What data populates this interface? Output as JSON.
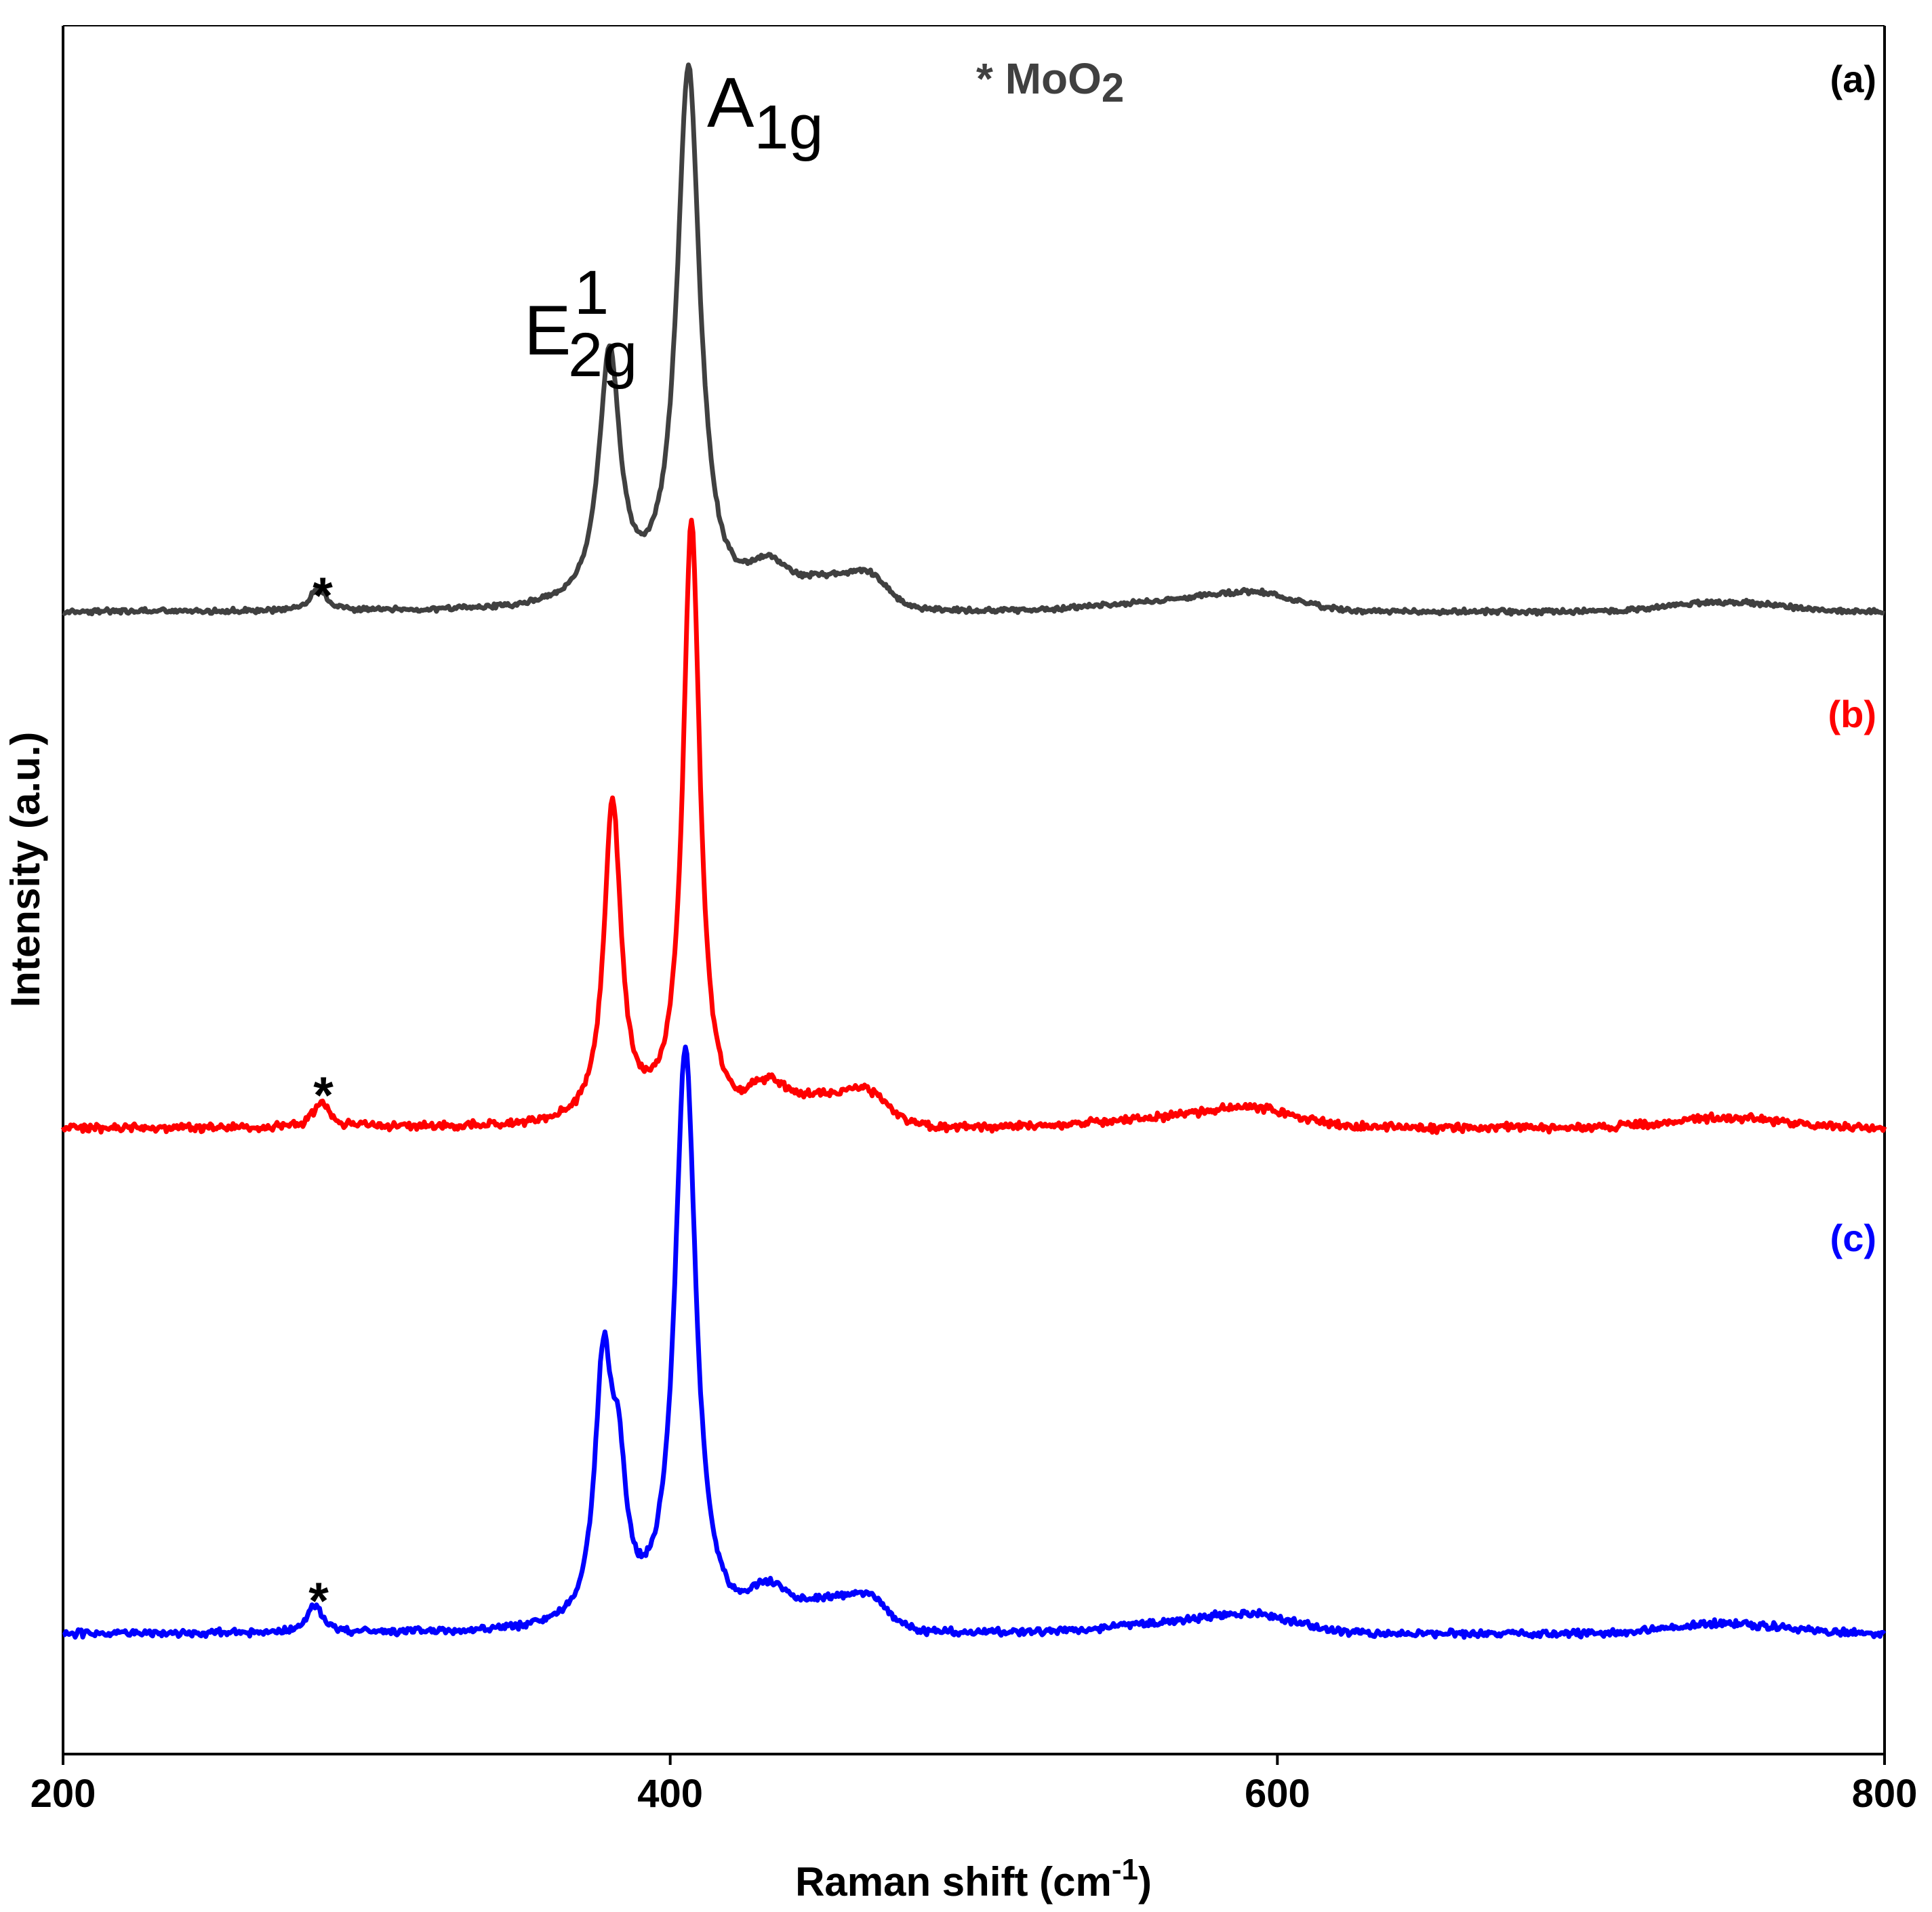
{
  "chart_data": {
    "type": "line",
    "title": "",
    "xlabel": "Raman shift (cm",
    "xlabel_sup": "-1",
    "xlabel_close": ")",
    "ylabel": "Intensity (a.u.)",
    "xlim": [
      200,
      800
    ],
    "ylim": [
      0,
      3.45
    ],
    "xticks": [
      "200",
      "400",
      "600",
      "800"
    ],
    "xtick_values": [
      200,
      400,
      600,
      800
    ],
    "grid": false,
    "legend_note": {
      "prefix": "* ",
      "text": "MoO",
      "sub": "2"
    },
    "peak_labels": [
      {
        "base": "E",
        "sup": "1",
        "sub": "2g",
        "x": 383
      },
      {
        "base": "A",
        "sub": "1g",
        "x": 408
      }
    ],
    "asterisk": "*",
    "peak_shape": {
      "description": "Lorentzian-like Raman peaks on flat baseline with weak broad features",
      "broad_features": [
        {
          "center": 432,
          "width": 6,
          "height": 0.06
        },
        {
          "center": 452,
          "width": 12,
          "height": 0.06
        },
        {
          "center": 466,
          "width": 6,
          "height": 0.04
        },
        {
          "center": 565,
          "width": 22,
          "height": 0.02
        },
        {
          "center": 593,
          "width": 14,
          "height": 0.03
        },
        {
          "center": 748,
          "width": 18,
          "height": 0.02
        }
      ]
    },
    "series": [
      {
        "name": "(a)",
        "color": "#404040",
        "offset": 2.28,
        "noise": 0.006,
        "peaks": [
          {
            "center": 284,
            "width": 3,
            "height": 0.045
          },
          {
            "center": 380,
            "width": 4.2,
            "height": 0.5
          },
          {
            "center": 406,
            "width": 4.6,
            "height": 1.08
          }
        ]
      },
      {
        "name": "(b)",
        "color": "#ff0000",
        "offset": 1.25,
        "noise": 0.01,
        "peaks": [
          {
            "center": 285,
            "width": 3,
            "height": 0.05
          },
          {
            "center": 381,
            "width": 3.4,
            "height": 0.64
          },
          {
            "center": 407,
            "width": 3.4,
            "height": 1.2
          }
        ]
      },
      {
        "name": "(c)",
        "color": "#0000ff",
        "offset": 0.24,
        "noise": 0.009,
        "peaks": [
          {
            "center": 283,
            "width": 3,
            "height": 0.055
          },
          {
            "center": 378,
            "width": 3.4,
            "height": 0.5
          },
          {
            "center": 383,
            "width": 3.0,
            "height": 0.25
          },
          {
            "center": 405,
            "width": 4.2,
            "height": 1.16
          }
        ]
      }
    ]
  }
}
